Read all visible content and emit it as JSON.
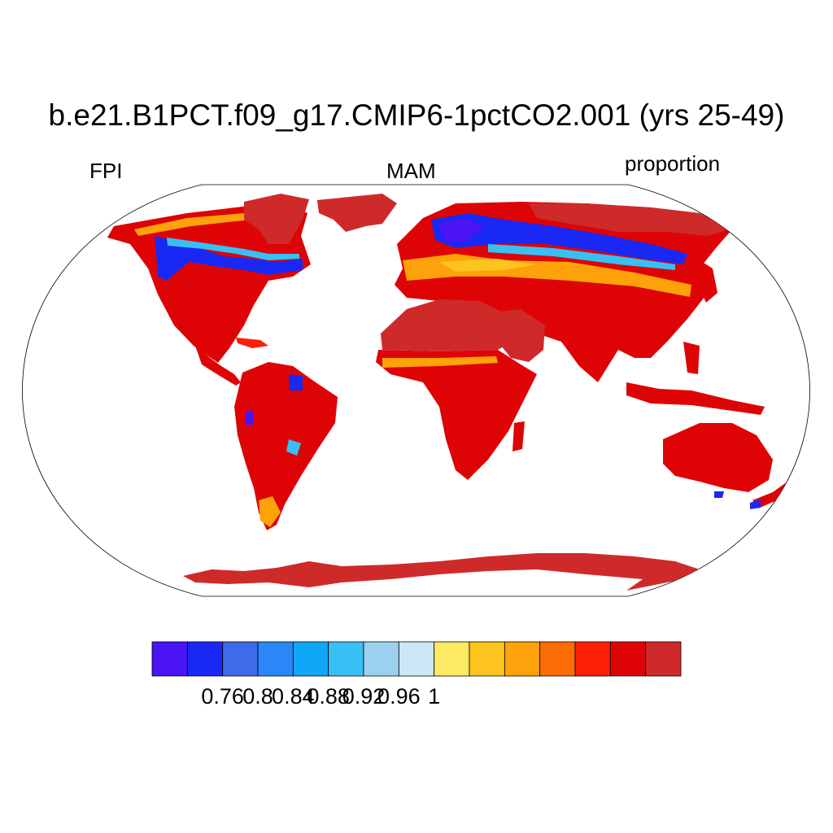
{
  "title": "b.e21.B1PCT.f09_g17.CMIP6-1pctCO2.001 (yrs 25-49)",
  "label_left": "FPI",
  "label_center": "MAM",
  "label_right": "proportion",
  "colorbar": {
    "colors": [
      "#4a14f5",
      "#1a28f5",
      "#3f6ae8",
      "#2a87f7",
      "#10a7f8",
      "#38c0f5",
      "#9bd1ee",
      "#cce7f5",
      "#fde964",
      "#fdc41e",
      "#fda20a",
      "#fc6d05",
      "#fb1f08",
      "#de0405",
      "#cf2a2a"
    ],
    "tick_labels": [
      "0.76",
      "0.8",
      "0.84",
      "0.88",
      "0.92",
      "0.96",
      "1"
    ]
  }
}
